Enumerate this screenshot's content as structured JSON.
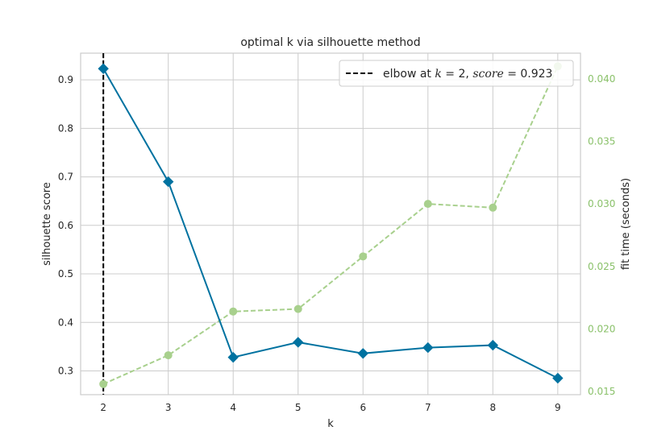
{
  "chart_data": {
    "type": "line",
    "title": "optimal k via silhouette method",
    "xlabel": "k",
    "ylabel": "silhouette score",
    "y2label": "fit time (seconds)",
    "x": [
      2,
      3,
      4,
      5,
      6,
      7,
      8,
      9
    ],
    "xlim": [
      1.65,
      9.35
    ],
    "ylim": [
      0.251,
      0.955
    ],
    "y2lim": [
      0.01475,
      0.04205
    ],
    "yticks": [
      0.3,
      0.4,
      0.5,
      0.6,
      0.7,
      0.8,
      0.9
    ],
    "yticks_labels": [
      "0.3",
      "0.4",
      "0.5",
      "0.6",
      "0.7",
      "0.8",
      "0.9"
    ],
    "y2ticks": [
      0.015,
      0.02,
      0.025,
      0.03,
      0.035,
      0.04
    ],
    "y2ticks_labels": [
      "0.015",
      "0.020",
      "0.025",
      "0.030",
      "0.035",
      "0.040"
    ],
    "xticks_labels": [
      "2",
      "3",
      "4",
      "5",
      "6",
      "7",
      "8",
      "9"
    ],
    "grid": true,
    "series": [
      {
        "name": "silhouette score",
        "axis": "left",
        "values": [
          0.923,
          0.69,
          0.328,
          0.359,
          0.336,
          0.348,
          0.353,
          0.285
        ],
        "color": "#0072a0",
        "marker": "diamond",
        "style": "solid"
      },
      {
        "name": "fit time (seconds)",
        "axis": "right",
        "values": [
          0.0156,
          0.0179,
          0.0214,
          0.0216,
          0.0258,
          0.03,
          0.0297,
          0.041
        ],
        "color": "#a8d08d",
        "marker": "circle",
        "style": "dashed"
      }
    ],
    "elbow": {
      "k": 2,
      "score": 0.923,
      "color": "#000000",
      "legend_prefix": "elbow at ",
      "legend_k_label": "k",
      "legend_score_label": "score",
      "legend_eq_k": " = 2, ",
      "legend_eq_score": " = 0.923"
    },
    "legend_position": "top-right",
    "colors": {
      "grid": "#cccccc",
      "frame": "#cccccc",
      "right_axis_text": "#8ac16a"
    }
  }
}
